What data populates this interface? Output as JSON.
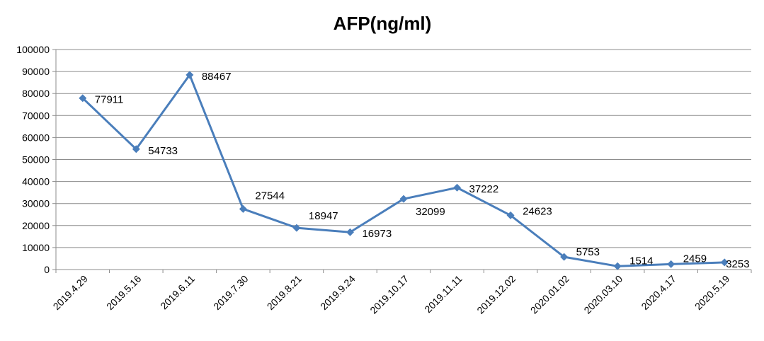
{
  "chart_data": {
    "type": "line",
    "title": "AFP(ng/ml)",
    "xlabel": "",
    "ylabel": "",
    "categories": [
      "2019.4.29",
      "2019.5.16",
      "2019.6.11",
      "2019.7.30",
      "2019.8.21",
      "2019.9.24",
      "2019.10.17",
      "2019.11.11",
      "2019.12.02",
      "2020.01.02",
      "2020.03.10",
      "2020.4.17",
      "2020.5.19"
    ],
    "series": [
      {
        "values": [
          77911,
          54733,
          88467,
          27544,
          18947,
          16973,
          32099,
          37222,
          24623,
          5753,
          1514,
          2459,
          3253
        ]
      }
    ],
    "data_labels": [
      "77911",
      "54733",
      "88467",
      "27544",
      "18947",
      "16973",
      "32099",
      "37222",
      "24623",
      "5753",
      "1514",
      "2459",
      "3253"
    ],
    "ylim": [
      0,
      100000
    ],
    "yticks": [
      "0",
      "10000",
      "20000",
      "30000",
      "40000",
      "50000",
      "60000",
      "70000",
      "80000",
      "90000",
      "100000"
    ],
    "grid": true,
    "legend": "none",
    "colors": {
      "line": "#4a7ebb",
      "marker": "#4a7ebb",
      "grid": "#8c8c8c",
      "axis": "#8c8c8c"
    }
  }
}
